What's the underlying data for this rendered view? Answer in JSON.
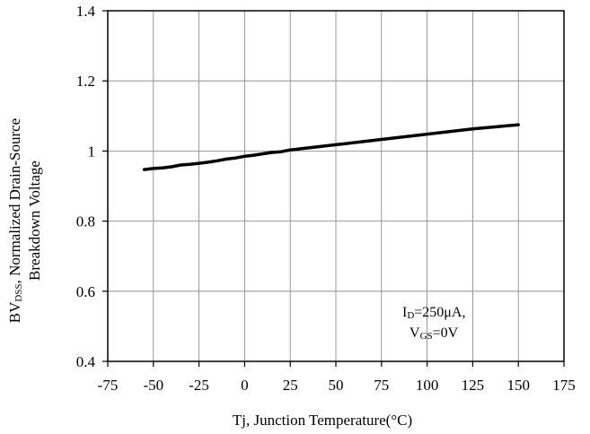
{
  "chart_data": {
    "type": "line",
    "xlabel": "Tj, Junction Temperature(°C)",
    "ylabel_line1": "BVDSS, Normalized Drain-Source",
    "ylabel_line2": "Breakdown Voltage",
    "ylabel_main": "BV",
    "ylabel_sub": "DSS",
    "ylabel_rest": ", Normalized Drain-Source",
    "xlim": [
      -75,
      175
    ],
    "ylim": [
      0.4,
      1.4
    ],
    "xticks": [
      -75,
      -50,
      -25,
      0,
      25,
      50,
      75,
      100,
      125,
      150,
      175
    ],
    "yticks": [
      0.4,
      0.6,
      0.8,
      1,
      1.2,
      1.4
    ],
    "xtick_labels": [
      "-75",
      "-50",
      "-25",
      "0",
      "25",
      "50",
      "75",
      "100",
      "125",
      "150",
      "175"
    ],
    "ytick_labels": [
      "0.4",
      "0.6",
      "0.8",
      "1",
      "1.2",
      "1.4"
    ],
    "grid": true,
    "series": [
      {
        "x": [
          -55,
          -50,
          -45,
          -40,
          -35,
          -30,
          -25,
          -20,
          -15,
          -10,
          -5,
          0,
          5,
          10,
          15,
          20,
          25,
          50,
          75,
          100,
          125,
          150
        ],
        "y": [
          0.947,
          0.95,
          0.952,
          0.955,
          0.96,
          0.962,
          0.965,
          0.968,
          0.972,
          0.977,
          0.98,
          0.985,
          0.988,
          0.992,
          0.996,
          0.998,
          1.003,
          1.018,
          1.033,
          1.048,
          1.063,
          1.075
        ]
      }
    ],
    "annotation": {
      "line1_main": "I",
      "line1_sub": "D",
      "line1_rest": "=250μA,",
      "line2_main": "V",
      "line2_sub": "GS",
      "line2_rest": "=0V"
    },
    "colors": {
      "line": "#000000",
      "grid": "#808080",
      "axis": "#000000"
    }
  }
}
